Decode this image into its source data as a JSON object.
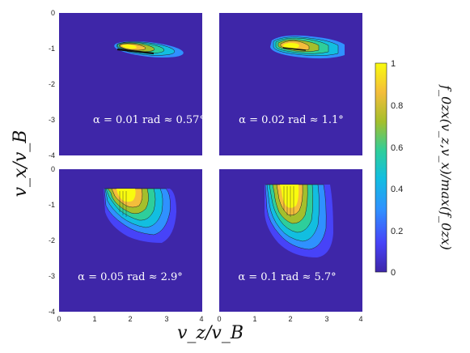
{
  "chart_data": [
    {
      "type": "heatmap",
      "annotation": "α = 0.01 rad ≈ 0.57°",
      "xlim": [
        0,
        4
      ],
      "ylim": [
        -4,
        0
      ],
      "x_ticks": [],
      "y_ticks": [
        "0",
        "-1",
        "-2",
        "-3",
        "-4"
      ],
      "peak": {
        "vz": 2.05,
        "vx": -1.05
      }
    },
    {
      "type": "heatmap",
      "annotation": "α = 0.02 rad ≈ 1.1°",
      "xlim": [
        0,
        4
      ],
      "ylim": [
        -4,
        0
      ],
      "x_ticks": [],
      "y_ticks": [],
      "peak": {
        "vz": 2.05,
        "vx": -1.0
      }
    },
    {
      "type": "heatmap",
      "annotation": "α = 0.05 rad ≈ 2.9°",
      "xlim": [
        0,
        4
      ],
      "ylim": [
        -4,
        0
      ],
      "x_ticks": [
        "0",
        "1",
        "2",
        "3",
        "4"
      ],
      "y_ticks": [
        "0",
        "-1",
        "-2",
        "-3",
        "-4"
      ],
      "peak": {
        "vz": 2.0,
        "vx": -1.0
      }
    },
    {
      "type": "heatmap",
      "annotation": "α = 0.1 rad ≈ 5.7°",
      "xlim": [
        0,
        4
      ],
      "ylim": [
        -4,
        0
      ],
      "x_ticks": [
        "0",
        "1",
        "2",
        "3",
        "4"
      ],
      "y_ticks": [],
      "peak": {
        "vz": 2.0,
        "vx": -1.2
      }
    }
  ],
  "axes": {
    "xlabel": "v_z/v_B",
    "ylabel": "v_x/v_B"
  },
  "colorbar": {
    "label": "f_0zx(v_z,v_x)/max(f_0zx)",
    "ticks": [
      "0",
      "0.2",
      "0.4",
      "0.6",
      "0.8",
      "1"
    ],
    "range": [
      0,
      1
    ],
    "colors": [
      "#3e26a8",
      "#4743f8",
      "#2f91ff",
      "#12bee0",
      "#2ece9b",
      "#a4bf2c",
      "#f4bd3b",
      "#f9fb0e"
    ]
  }
}
